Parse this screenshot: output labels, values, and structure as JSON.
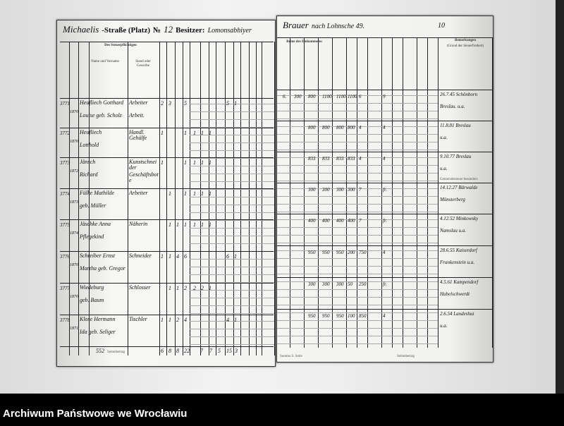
{
  "archive_label": "Archiwum Państwowe we Wrocławiu",
  "left_page": {
    "street_handwritten": "Michaelis",
    "street_label": "-Straße (Platz)",
    "number_label": "№",
    "number": "12",
    "owner_label": "Besitzer:",
    "owner_handwritten": "Lomonsabhiyer",
    "headers": [
      "Des Steuerpflichtigen",
      "Name und Vorname",
      "Stand oder Gewerbe"
    ],
    "rows": [
      {
        "no": "3771",
        "date": "1870",
        "name": "Heufliech Gotthard",
        "name2": "Louise geb. Scholz",
        "occ": "Arbeiter",
        "occ2": "Arbeit.",
        "vals": [
          "2",
          "3",
          "",
          "5"
        ],
        "extra": [
          "5",
          "1"
        ]
      },
      {
        "no": "3772",
        "date": "1870",
        "name": "Heufliech",
        "name2": "Lotthold",
        "occ": "Handl. Gehülfe",
        "vals": [
          "1",
          "",
          "",
          "1"
        ],
        "mid": [
          "1",
          "1",
          "1"
        ]
      },
      {
        "no": "3773",
        "date": "1872",
        "name": "Jänsch",
        "name2": "Richard",
        "occ": "Kunstschneider",
        "occ2": "Geschäftsbote",
        "vals": [
          "1",
          "",
          "",
          "1"
        ],
        "mid": [
          "1",
          "1",
          "1"
        ]
      },
      {
        "no": "3774",
        "date": "1873",
        "name": "Fülke Mathilde",
        "name2": "geb. Müller",
        "occ": "Arbeiter",
        "vals": [
          "",
          "1",
          "",
          "1"
        ],
        "mid": [
          "1",
          "1",
          "1"
        ]
      },
      {
        "no": "3775",
        "date": "1874",
        "name": "Jäschke Anna",
        "name2": "Pflegekind",
        "occ": "Näherin",
        "vals": [
          "",
          "1",
          "1",
          "1"
        ],
        "mid": [
          "1",
          "1",
          "1"
        ]
      },
      {
        "no": "3776",
        "date": "1870",
        "name": "Schreiber Ernst",
        "name2": "Martha geb. Gregor",
        "occ": "Schneider",
        "vals": [
          "1",
          "1",
          "4",
          "6"
        ],
        "extra": [
          "6",
          "1"
        ]
      },
      {
        "no": "3777",
        "date": "1870",
        "name": "Wiedeburg",
        "name2": "geb. Baum",
        "occ": "Schlosser",
        "vals": [
          "",
          "1",
          "1",
          "2"
        ],
        "mid": [
          "2",
          "2",
          "1"
        ]
      },
      {
        "no": "3778",
        "date": "1871",
        "name": "Klose Hermann",
        "name2": "Ida geb. Seliger",
        "occ": "Tischler",
        "vals": [
          "1",
          "1",
          "2",
          "4"
        ],
        "extra": [
          "4",
          "1"
        ]
      }
    ],
    "totals_label": "Seitenbetrag",
    "totals_prefix": "552",
    "totals": [
      "6",
      "8",
      "8",
      "22",
      "7",
      "7",
      "5",
      "15",
      "3"
    ]
  },
  "right_page": {
    "top_handwritten": "Brauer",
    "top_handwritten2": "nach Lohnsche 49.",
    "page_no": "10",
    "header_income": "Reine des Einkommens:",
    "header_remarks": "Bemerkungen",
    "header_remarks_sub": "(Grund der Steuerfreiheit)",
    "rows": [
      {
        "vals": [
          "6.",
          "300",
          "800",
          "1100",
          "1100",
          "1100",
          "6",
          "9"
        ],
        "remark": "26.7.45 Schönborn",
        "remark2": "Breslau. u.a."
      },
      {
        "vals": [
          "",
          "",
          "800",
          "800",
          "800",
          "800",
          "4",
          "4"
        ],
        "remark": "11.8.81 Breslau",
        "remark2": "u.a."
      },
      {
        "vals": [
          "",
          "",
          "833",
          "833",
          "833",
          "833",
          "4",
          "4"
        ],
        "remark": "9.10.77 Breslau",
        "remark2": "u.a.",
        "note": "Gemeindesteuer besonders"
      },
      {
        "vals": [
          "",
          "",
          "300",
          "300",
          "300",
          "300",
          "7",
          "fr."
        ],
        "remark": "14.12.27 Bärwalde",
        "remark2": "Münsterberg"
      },
      {
        "vals": [
          "",
          "",
          "400",
          "400",
          "400",
          "400",
          "7",
          "fr."
        ],
        "remark": "4.12.52 Minkowsky",
        "remark2": "Namslau u.a."
      },
      {
        "vals": [
          "",
          "",
          "950",
          "950",
          "950",
          "200",
          "750",
          "4"
        ],
        "remark": "28.6.55 Kaiserdorf",
        "remark2": "Frankenstein u.a."
      },
      {
        "vals": [
          "",
          "",
          "300",
          "300",
          "300",
          "50",
          "250",
          "fr."
        ],
        "remark": "4.5.61 Kampendorf",
        "remark2": "Habelschwerdt"
      },
      {
        "vals": [
          "",
          "",
          "950",
          "950",
          "950",
          "100",
          "850",
          "4"
        ],
        "remark": "2.6.54 Landeshut",
        "remark2": "u.a."
      }
    ],
    "footer_print": "Summa S. Seite",
    "footer_total_label": "Seitenbetrag"
  }
}
